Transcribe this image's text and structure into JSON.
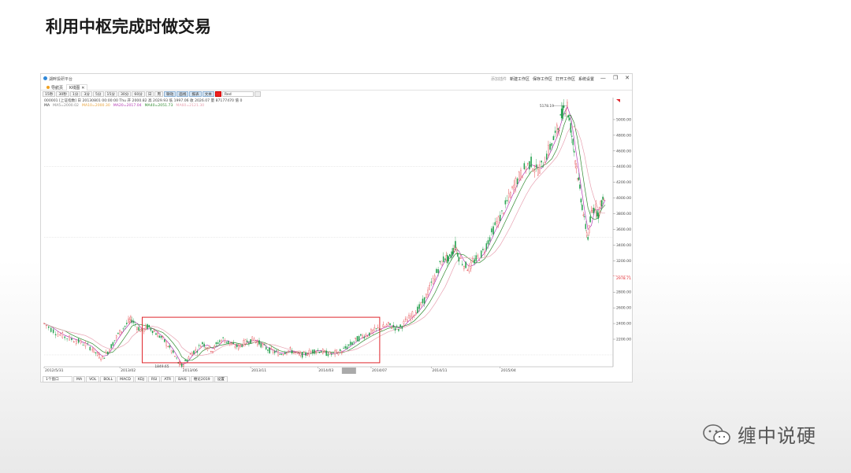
{
  "slide": {
    "title": "利用中枢完成时做交易"
  },
  "app": {
    "name": "湖畔投研平台",
    "top_links": [
      "添加插件",
      "新建工作区",
      "保存工作区",
      "打开工作区",
      "系统设置"
    ],
    "window_buttons": [
      "—",
      "❐",
      "✕"
    ]
  },
  "tabs": [
    {
      "label": "导航页"
    },
    {
      "label": "K线图",
      "close": "✕"
    }
  ],
  "toolbar": {
    "periods": [
      "15秒",
      "30秒",
      "1分",
      "3分",
      "5分",
      "15分",
      "30分",
      "60分",
      "日",
      "周"
    ],
    "modes": [
      "联动",
      "画线",
      "报表",
      "文本"
    ],
    "color_name": "Red"
  },
  "info_line": "000001 [上证指数] 日 20130801 00:00:00 Thu  开 2000.82 高 2029.93 低 1997.06 收 2026.07 量 87177470 值 0",
  "ma_line": [
    {
      "text": "MA",
      "color": "#333333"
    },
    {
      "text": "MA5=2000.02",
      "color": "#888888"
    },
    {
      "text": "MA10=2000.30",
      "color": "#e8a33d"
    },
    {
      "text": "MA20=2017.04",
      "color": "#b43ab4"
    },
    {
      "text": "MA40=2051.73",
      "color": "#2f8a2f"
    },
    {
      "text": "MA60=2121.30",
      "color": "#e7a0b0"
    }
  ],
  "chart_data": {
    "type": "candlestick",
    "symbol": "000001 上证指数",
    "x_tick_labels": [
      "2012/5/31",
      "2013/02",
      "2013/06",
      "2013/11",
      "2014/03",
      "2014/07",
      "2014/11",
      "2015/04"
    ],
    "y_tick_labels": [
      "5000.00",
      "4800.00",
      "4600.00",
      "4400.00",
      "4200.00",
      "4000.00",
      "3800.00",
      "3600.00",
      "3400.00",
      "3200.00",
      "2800.00",
      "2600.00",
      "2400.00",
      "2200.00"
    ],
    "ylim": [
      1849,
      5200
    ],
    "current_price_label": "2978.71",
    "annotations": {
      "high_label": "5178.19",
      "low_label": "1849.65"
    },
    "close_path": [
      [
        0,
        2400
      ],
      [
        8,
        2330
      ],
      [
        16,
        2270
      ],
      [
        24,
        2230
      ],
      [
        32,
        2200
      ],
      [
        40,
        2170
      ],
      [
        48,
        2130
      ],
      [
        56,
        2080
      ],
      [
        62,
        2000
      ],
      [
        68,
        1960
      ],
      [
        74,
        2040
      ],
      [
        80,
        2150
      ],
      [
        86,
        2260
      ],
      [
        92,
        2340
      ],
      [
        98,
        2420
      ],
      [
        102,
        2450
      ],
      [
        108,
        2360
      ],
      [
        114,
        2300
      ],
      [
        120,
        2360
      ],
      [
        126,
        2320
      ],
      [
        132,
        2260
      ],
      [
        138,
        2200
      ],
      [
        144,
        2120
      ],
      [
        150,
        2020
      ],
      [
        156,
        1900
      ],
      [
        160,
        1860
      ],
      [
        166,
        1940
      ],
      [
        172,
        2030
      ],
      [
        178,
        2070
      ],
      [
        184,
        2150
      ],
      [
        190,
        2100
      ],
      [
        196,
        2060
      ],
      [
        202,
        2160
      ],
      [
        208,
        2200
      ],
      [
        214,
        2160
      ],
      [
        220,
        2120
      ],
      [
        226,
        2100
      ],
      [
        232,
        2150
      ],
      [
        238,
        2180
      ],
      [
        244,
        2200
      ],
      [
        250,
        2150
      ],
      [
        256,
        2100
      ],
      [
        262,
        2060
      ],
      [
        268,
        2040
      ],
      [
        274,
        2010
      ],
      [
        280,
        2040
      ],
      [
        286,
        2060
      ],
      [
        292,
        2020
      ],
      [
        298,
        2000
      ],
      [
        304,
        2010
      ],
      [
        310,
        2040
      ],
      [
        316,
        2060
      ],
      [
        322,
        2050
      ],
      [
        328,
        2020
      ],
      [
        334,
        2010
      ],
      [
        340,
        2030
      ],
      [
        346,
        2050
      ],
      [
        352,
        2100
      ],
      [
        358,
        2150
      ],
      [
        364,
        2200
      ],
      [
        370,
        2240
      ],
      [
        376,
        2260
      ],
      [
        382,
        2300
      ],
      [
        388,
        2330
      ],
      [
        394,
        2350
      ],
      [
        400,
        2380
      ],
      [
        406,
        2360
      ],
      [
        412,
        2330
      ],
      [
        418,
        2400
      ],
      [
        424,
        2470
      ],
      [
        430,
        2530
      ],
      [
        436,
        2600
      ],
      [
        442,
        2700
      ],
      [
        448,
        2850
      ],
      [
        454,
        3000
      ],
      [
        460,
        3150
      ],
      [
        466,
        3250
      ],
      [
        470,
        3200
      ],
      [
        474,
        3300
      ],
      [
        478,
        3400
      ],
      [
        482,
        3250
      ],
      [
        488,
        3150
      ],
      [
        494,
        3100
      ],
      [
        500,
        3200
      ],
      [
        506,
        3250
      ],
      [
        512,
        3350
      ],
      [
        518,
        3500
      ],
      [
        524,
        3650
      ],
      [
        530,
        3750
      ],
      [
        536,
        3900
      ],
      [
        542,
        4050
      ],
      [
        548,
        4200
      ],
      [
        554,
        4300
      ],
      [
        560,
        4400
      ],
      [
        566,
        4450
      ],
      [
        572,
        4350
      ],
      [
        578,
        4400
      ],
      [
        584,
        4550
      ],
      [
        590,
        4700
      ],
      [
        596,
        4850
      ],
      [
        600,
        5000
      ],
      [
        604,
        5150
      ],
      [
        608,
        5178
      ],
      [
        612,
        4900
      ],
      [
        616,
        4600
      ],
      [
        620,
        4300
      ],
      [
        624,
        4000
      ],
      [
        628,
        3700
      ],
      [
        632,
        3500
      ],
      [
        636,
        3800
      ],
      [
        640,
        3900
      ],
      [
        644,
        3800
      ],
      [
        648,
        3950
      ],
      [
        652,
        4000
      ]
    ],
    "highlight_box": {
      "from_label": "2013/02",
      "to_label": "2014/07",
      "color": "#e0262c"
    }
  },
  "bottom_bar": {
    "window_select": "1个窗口",
    "indicators": [
      "MA",
      "VOL",
      "BOLL",
      "MACD",
      "KDJ",
      "RSI",
      "ATR",
      "BAIS",
      "缠论2019",
      "设置"
    ]
  },
  "footer": {
    "text": "缠中说硬"
  }
}
